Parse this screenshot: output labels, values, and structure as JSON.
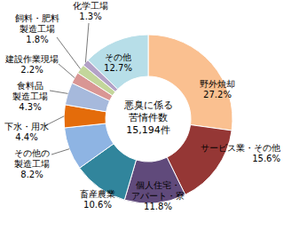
{
  "chart_data": {
    "type": "donut",
    "annotations": [
      "悪臭に係る",
      "苦情件数",
      "15,194件"
    ],
    "categories": [
      "野外焼却",
      "サービス業・その他",
      "個人住宅・\nアパート・寮",
      "畜産農業",
      "その他の\n製造工場",
      "下水・用水",
      "食料品\n製造工場",
      "建設作業現場",
      "飼料・肥料\n製造工場",
      "化学工場",
      "その他"
    ],
    "values": [
      27.2,
      15.6,
      11.8,
      10.6,
      8.2,
      4.4,
      4.3,
      2.2,
      1.8,
      1.3,
      12.7
    ],
    "value_labels": [
      "27.2%",
      "15.6%",
      "11.8%",
      "10.6%",
      "8.2%",
      "4.4%",
      "4.3%",
      "2.2%",
      "1.8%",
      "1.3%",
      "12.7%"
    ],
    "colors": [
      "#FAC090",
      "#953735",
      "#604A7B",
      "#31859C",
      "#8EB4E3",
      "#E46C0A",
      "#A6B9DC",
      "#D99694",
      "#C3D69B",
      "#B3A2C7",
      "#B7DEE8"
    ]
  }
}
